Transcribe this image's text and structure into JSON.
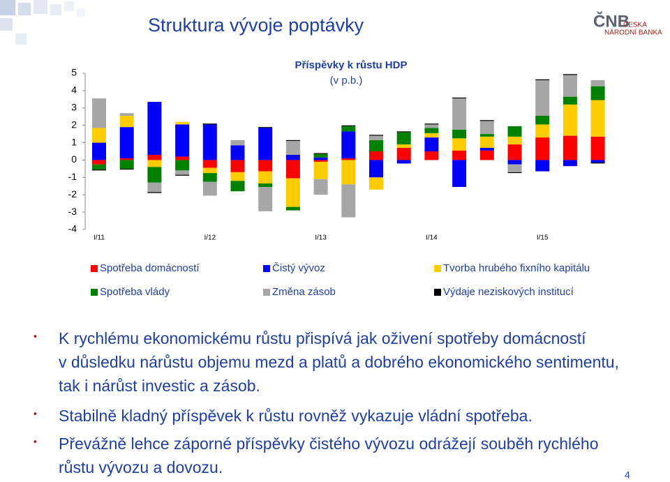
{
  "header": {
    "title": "Struktura vývoje poptávky",
    "logo": {
      "mark": "ČNB",
      "line1": "ČESKÁ",
      "line2": "NÁRODNÍ BANKA"
    }
  },
  "chart_data": {
    "type": "bar",
    "stacked": true,
    "title": "Příspěvky k růstu HDP",
    "subtitle": "(v p.b.)",
    "categories": [
      "I/11",
      null,
      null,
      null,
      "I/12",
      null,
      null,
      null,
      "I/13",
      null,
      null,
      null,
      "I/14",
      null,
      null,
      null,
      "I/15",
      null,
      null
    ],
    "series": [
      {
        "name": "Spotřeba domácností",
        "color": "#ff0000",
        "values": [
          -0.25,
          0.1,
          0.3,
          0.2,
          -0.45,
          -0.7,
          -0.65,
          -1.05,
          -0.1,
          0.1,
          0.5,
          0.7,
          0.5,
          0.55,
          0.55,
          0.9,
          1.3,
          1.4,
          1.35
        ]
      },
      {
        "name": "Čistý vývoz",
        "color": "#0000ff",
        "values": [
          1.0,
          1.8,
          3.05,
          1.85,
          2.05,
          0.85,
          1.85,
          0.3,
          0.15,
          1.55,
          -1.0,
          -0.2,
          0.8,
          -1.55,
          0.15,
          -0.25,
          -0.65,
          -0.35,
          -0.15
        ]
      },
      {
        "name": "Tvorba hrubého fixního kapitálu",
        "color": "#ffcc00",
        "values": [
          0.85,
          0.65,
          -0.4,
          0.15,
          -0.3,
          -0.5,
          -0.7,
          -1.65,
          -1.0,
          -1.4,
          -0.7,
          0.2,
          0.25,
          0.7,
          0.65,
          0.45,
          0.75,
          1.8,
          2.1
        ]
      },
      {
        "name": "Spotřeba vlády",
        "color": "#008000",
        "values": [
          -0.3,
          -0.5,
          -0.9,
          -0.6,
          -0.5,
          -0.6,
          -0.2,
          -0.2,
          0.2,
          0.3,
          0.65,
          0.7,
          0.3,
          0.5,
          0.15,
          0.6,
          0.5,
          0.45,
          0.8
        ]
      },
      {
        "name": "Změna zásob",
        "color": "#a6a6a6",
        "values": [
          1.7,
          0.15,
          -0.55,
          -0.25,
          -0.8,
          0.3,
          -1.4,
          0.8,
          -0.9,
          -1.9,
          0.25,
          0,
          0.2,
          1.8,
          0.75,
          -0.45,
          2.05,
          1.25,
          0.35
        ]
      },
      {
        "name": "Výdaje neziskových institucí",
        "color": "#000000",
        "values": [
          -0.05,
          -0.05,
          -0.05,
          -0.05,
          0.05,
          0,
          0.05,
          0.05,
          0.05,
          0.05,
          0.05,
          0.05,
          0.05,
          0.05,
          0.05,
          -0.05,
          0.05,
          0.05,
          -0.05
        ]
      }
    ],
    "ylim": [
      -4,
      5
    ],
    "yticks": [
      5,
      4,
      3,
      2,
      1,
      0,
      -1,
      -2,
      -3,
      -4
    ],
    "grid": false
  },
  "bullets": [
    {
      "lines": [
        "K rychlému ekonomickému růstu přispívá jak oživení spotřeby domácností",
        "v důsledku nárůstu objemu mezd a platů a dobrého ekonomického sentimentu,",
        "tak i nárůst investic a zásob."
      ]
    },
    {
      "lines": [
        "Stabilně kladný příspěvek k růstu rovněž vykazuje vládní spotřeba."
      ]
    },
    {
      "lines": [
        "Převážně lehce záporné příspěvky čistého vývozu odrážejí souběh rychlého",
        "růstu vývozu a dovozu."
      ]
    }
  ],
  "page_number": "4"
}
